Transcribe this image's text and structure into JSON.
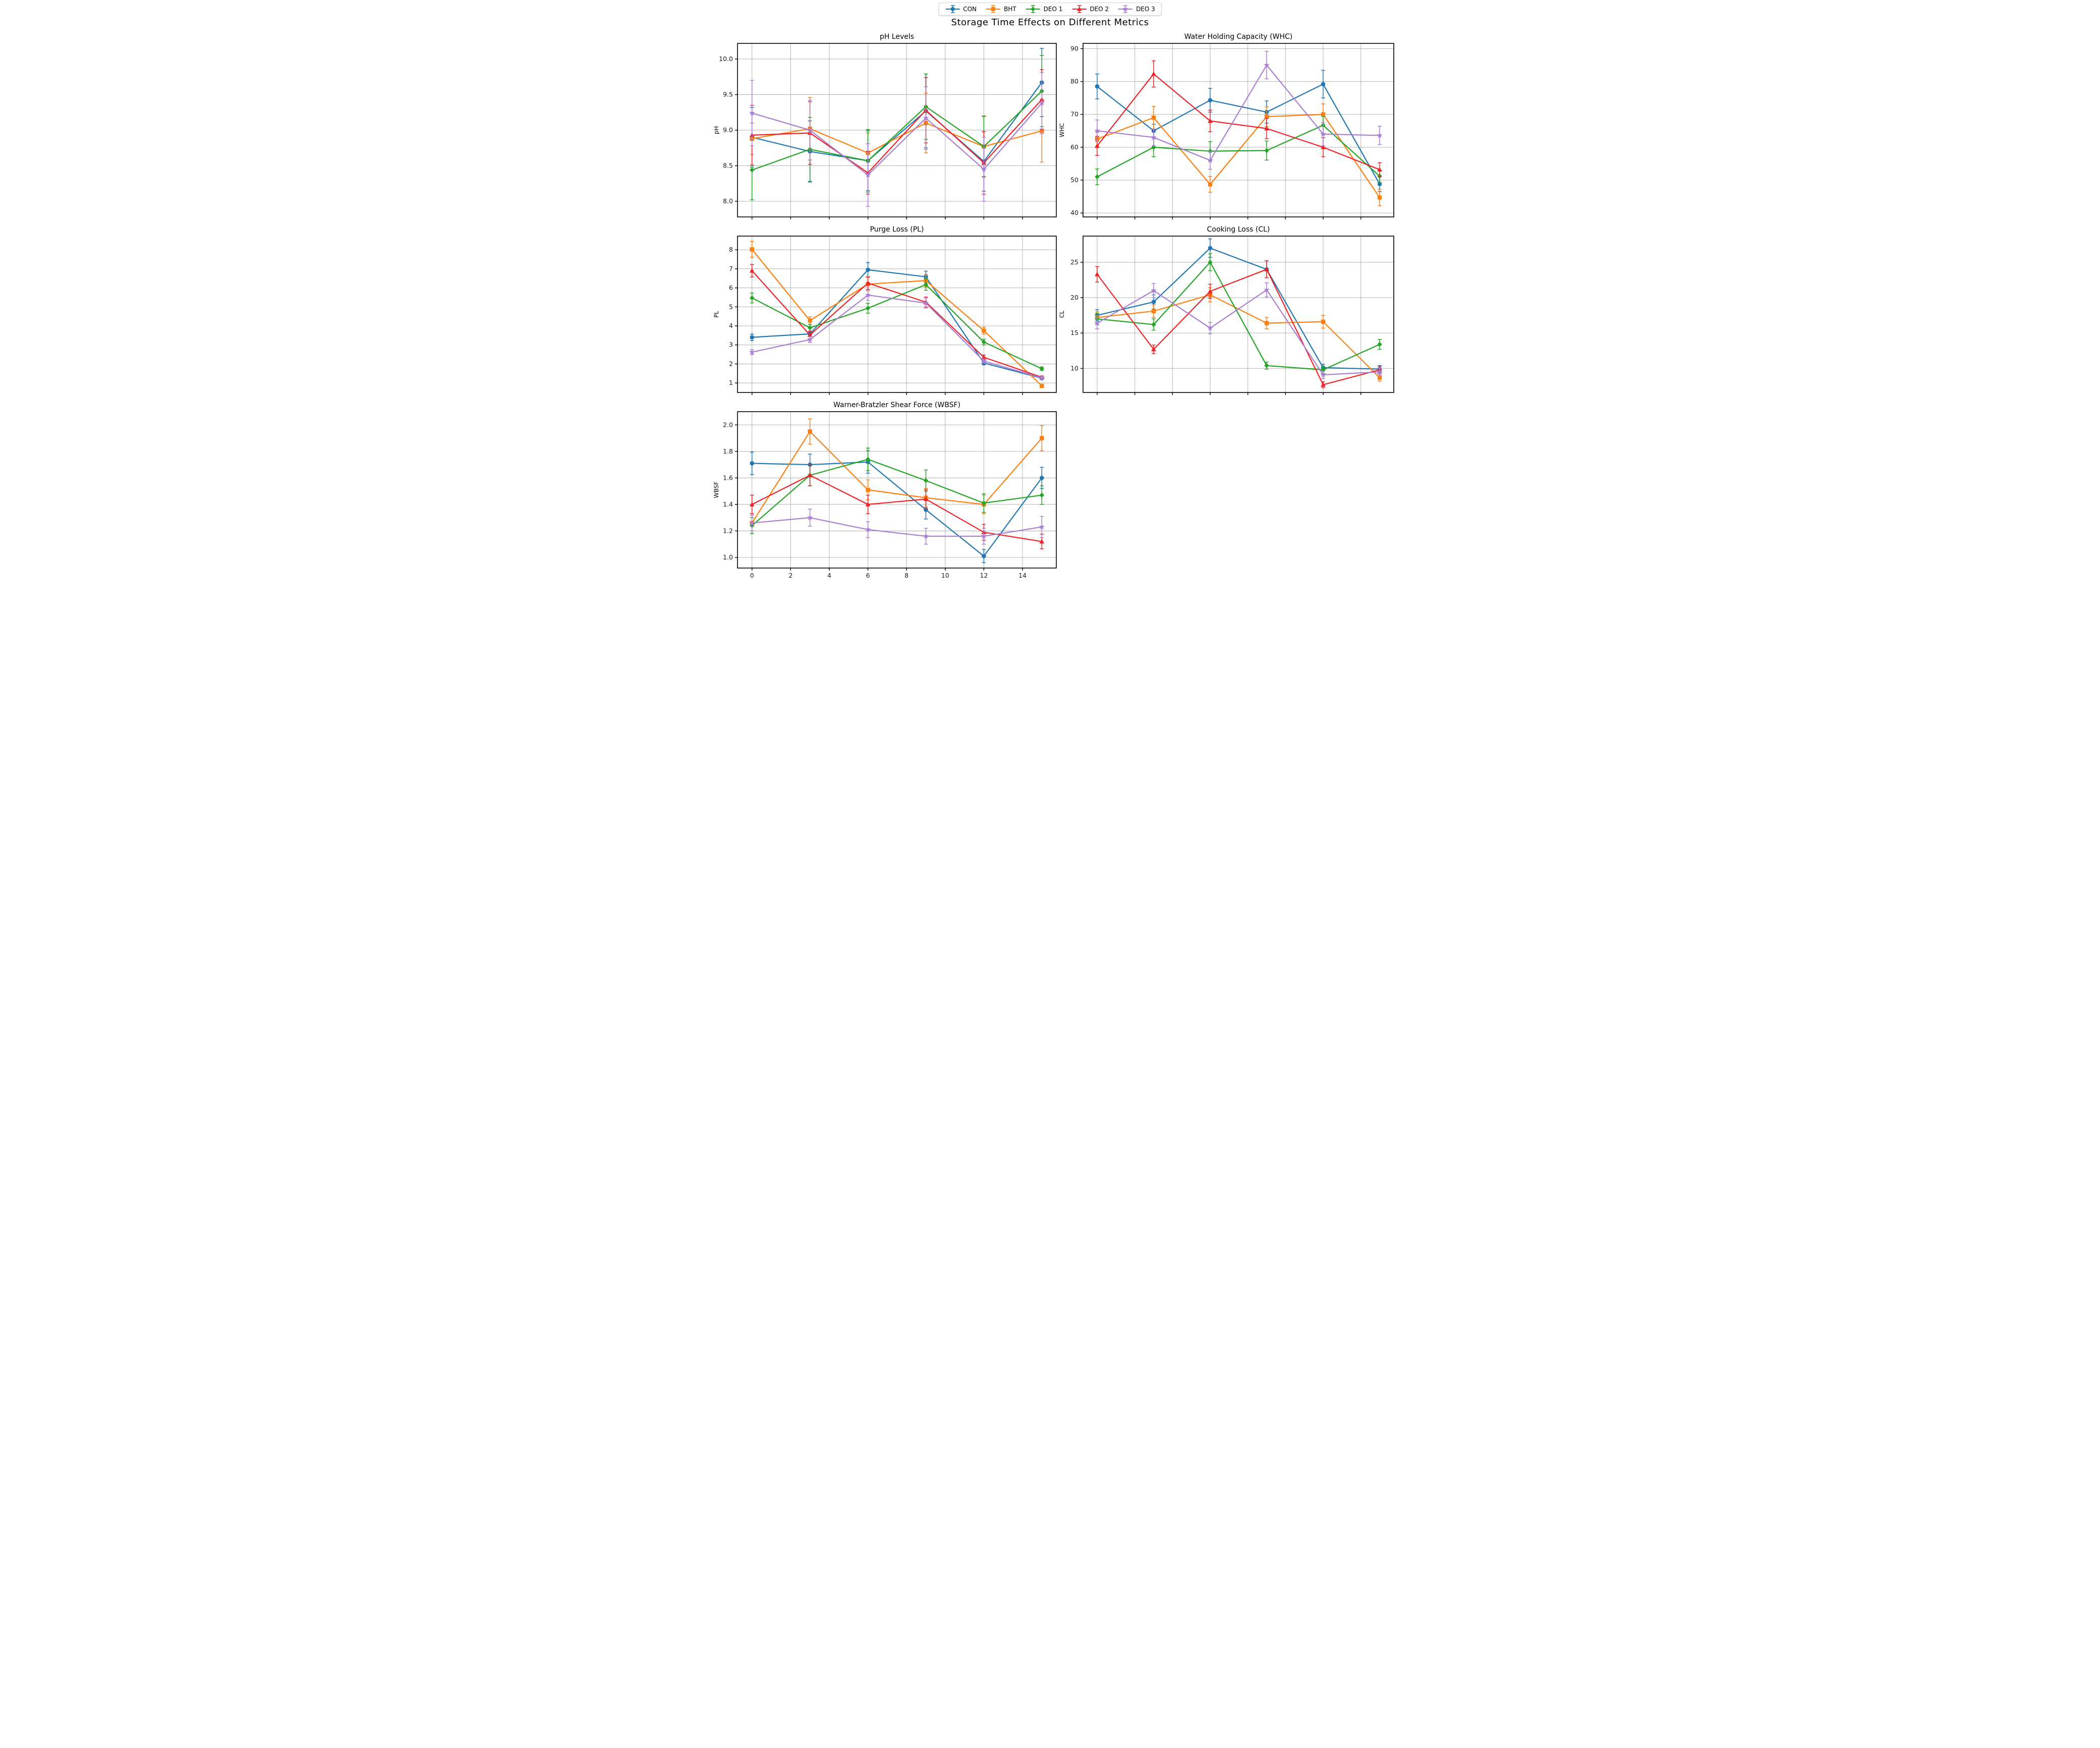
{
  "page_title": "Storage Time Effects on Different Metrics",
  "legend": {
    "items": [
      {
        "label": "CON",
        "color": "#1f77b4",
        "marker": "circle"
      },
      {
        "label": "BHT",
        "color": "#ff7f0e",
        "marker": "square"
      },
      {
        "label": "DEO 1",
        "color": "#23a523",
        "marker": "diamond"
      },
      {
        "label": "DEO 2",
        "color": "#ec2427",
        "marker": "triangle"
      },
      {
        "label": "DEO 3",
        "color": "#a97ed4",
        "marker": "star"
      }
    ]
  },
  "chart_data": [
    {
      "type": "line",
      "title": "pH Levels",
      "ylabel": "pH",
      "x": [
        0,
        3,
        6,
        9,
        12,
        15
      ],
      "xlim": [
        -0.75,
        15.75
      ],
      "xticks": [
        0,
        2,
        4,
        6,
        8,
        10,
        12,
        14
      ],
      "xticklabels": [
        "0",
        "2",
        "4",
        "6",
        "8",
        "10",
        "12",
        "14"
      ],
      "show_xticklabels": false,
      "yticks": [
        8.0,
        8.5,
        9.0,
        9.5,
        10.0
      ],
      "yticklabels": [
        "8.0",
        "8.5",
        "9.0",
        "9.5",
        "10.0"
      ],
      "ylim": [
        7.78,
        10.22
      ],
      "grid": true,
      "legend_position": "figure-top",
      "series": [
        {
          "name": "CON",
          "color": "#1f77b4",
          "marker": "circle",
          "values": [
            8.9,
            8.7,
            8.57,
            9.27,
            8.56,
            9.67
          ],
          "errors": [
            0.42,
            0.43,
            0.42,
            0.52,
            0.42,
            0.48
          ]
        },
        {
          "name": "BHT",
          "color": "#ff7f0e",
          "marker": "square",
          "values": [
            8.88,
            9.02,
            8.68,
            9.1,
            8.77,
            8.99
          ],
          "errors": [
            0.22,
            0.44,
            0.28,
            0.42,
            0.42,
            0.44
          ]
        },
        {
          "name": "DEO 1",
          "color": "#23a523",
          "marker": "diamond",
          "values": [
            8.44,
            8.73,
            8.57,
            9.33,
            8.77,
            9.55
          ],
          "errors": [
            0.42,
            0.45,
            0.44,
            0.46,
            0.43,
            0.5
          ]
        },
        {
          "name": "DEO 2",
          "color": "#ec2427",
          "marker": "triangle",
          "values": [
            8.93,
            8.96,
            8.4,
            9.28,
            8.54,
            9.43
          ],
          "errors": [
            0.42,
            0.44,
            0.3,
            0.46,
            0.44,
            0.42
          ]
        },
        {
          "name": "DEO 3",
          "color": "#a97ed4",
          "marker": "star",
          "values": [
            9.24,
            9.0,
            8.37,
            9.17,
            8.45,
            9.38
          ],
          "errors": [
            0.46,
            0.42,
            0.44,
            0.44,
            0.45,
            0.43
          ]
        }
      ]
    },
    {
      "type": "line",
      "title": "Water Holding Capacity (WHC)",
      "ylabel": "WHC",
      "x": [
        0,
        3,
        6,
        9,
        12,
        15
      ],
      "xlim": [
        -0.75,
        15.75
      ],
      "xticks": [
        0,
        2,
        4,
        6,
        8,
        10,
        12,
        14
      ],
      "xticklabels": [
        "0",
        "2",
        "4",
        "6",
        "8",
        "10",
        "12",
        "14"
      ],
      "show_xticklabels": false,
      "yticks": [
        40,
        50,
        60,
        70,
        80,
        90
      ],
      "yticklabels": [
        "40",
        "50",
        "60",
        "70",
        "80",
        "90"
      ],
      "ylim": [
        38.8,
        91.6
      ],
      "grid": true,
      "series": [
        {
          "name": "CON",
          "color": "#1f77b4",
          "marker": "circle",
          "values": [
            78.5,
            65.0,
            74.3,
            70.7,
            79.2,
            48.8
          ],
          "errors": [
            3.8,
            2.0,
            3.6,
            3.4,
            4.2,
            2.3
          ]
        },
        {
          "name": "BHT",
          "color": "#ff7f0e",
          "marker": "square",
          "values": [
            62.5,
            69.0,
            48.7,
            69.3,
            70.0,
            44.7
          ],
          "errors": [
            2.1,
            3.4,
            2.4,
            3.0,
            3.2,
            2.5
          ]
        },
        {
          "name": "DEO 1",
          "color": "#23a523",
          "marker": "diamond",
          "values": [
            51.0,
            60.0,
            58.8,
            59.0,
            66.7,
            51.2
          ],
          "errors": [
            2.4,
            2.9,
            2.9,
            2.9,
            2.7,
            1.9
          ]
        },
        {
          "name": "DEO 2",
          "color": "#ec2427",
          "marker": "triangle",
          "values": [
            60.4,
            82.3,
            68.0,
            65.7,
            60.0,
            53.2
          ],
          "errors": [
            2.9,
            4.0,
            3.3,
            3.1,
            2.9,
            2.1
          ]
        },
        {
          "name": "DEO 3",
          "color": "#a97ed4",
          "marker": "star",
          "values": [
            65.0,
            63.0,
            56.0,
            85.0,
            64.0,
            63.6
          ],
          "errors": [
            3.3,
            2.5,
            2.7,
            4.2,
            3.5,
            2.8
          ]
        }
      ]
    },
    {
      "type": "line",
      "title": "Purge Loss (PL)",
      "ylabel": "PL",
      "x": [
        0,
        3,
        6,
        9,
        12,
        15
      ],
      "xlim": [
        -0.75,
        15.75
      ],
      "xticks": [
        0,
        2,
        4,
        6,
        8,
        10,
        12,
        14
      ],
      "xticklabels": [
        "0",
        "2",
        "4",
        "6",
        "8",
        "10",
        "12",
        "14"
      ],
      "show_xticklabels": false,
      "yticks": [
        1,
        2,
        3,
        4,
        5,
        6,
        7,
        8
      ],
      "yticklabels": [
        "1",
        "2",
        "3",
        "4",
        "5",
        "6",
        "7",
        "8"
      ],
      "ylim": [
        0.5,
        8.72
      ],
      "grid": true,
      "series": [
        {
          "name": "CON",
          "color": "#1f77b4",
          "marker": "circle",
          "values": [
            3.4,
            3.58,
            6.95,
            6.58,
            2.05,
            1.25
          ],
          "errors": [
            0.17,
            0.12,
            0.38,
            0.3,
            0.1,
            0.07
          ]
        },
        {
          "name": "BHT",
          "color": "#ff7f0e",
          "marker": "square",
          "values": [
            8.02,
            4.28,
            6.2,
            6.38,
            3.75,
            0.85
          ],
          "errors": [
            0.42,
            0.2,
            0.35,
            0.33,
            0.18,
            0.05
          ]
        },
        {
          "name": "DEO 1",
          "color": "#23a523",
          "marker": "diamond",
          "values": [
            5.47,
            3.9,
            4.93,
            6.17,
            3.15,
            1.75
          ],
          "errors": [
            0.26,
            0.18,
            0.26,
            0.3,
            0.15,
            0.09
          ]
        },
        {
          "name": "DEO 2",
          "color": "#ec2427",
          "marker": "triangle",
          "values": [
            6.9,
            3.52,
            6.25,
            5.25,
            2.35,
            1.3
          ],
          "errors": [
            0.33,
            0.2,
            0.33,
            0.27,
            0.12,
            0.07
          ]
        },
        {
          "name": "DEO 3",
          "color": "#a97ed4",
          "marker": "star",
          "values": [
            2.62,
            3.28,
            5.62,
            5.2,
            2.15,
            1.27
          ],
          "errors": [
            0.13,
            0.15,
            0.28,
            0.26,
            0.11,
            0.07
          ]
        }
      ]
    },
    {
      "type": "line",
      "title": "Cooking Loss (CL)",
      "ylabel": "CL",
      "x": [
        0,
        3,
        6,
        9,
        12,
        15
      ],
      "xlim": [
        -0.75,
        15.75
      ],
      "xticks": [
        0,
        2,
        4,
        6,
        8,
        10,
        12,
        14
      ],
      "xticklabels": [
        "0",
        "2",
        "4",
        "6",
        "8",
        "10",
        "12",
        "14"
      ],
      "show_xticklabels": false,
      "yticks": [
        10,
        15,
        20,
        25
      ],
      "yticklabels": [
        "10",
        "15",
        "20",
        "25"
      ],
      "ylim": [
        6.6,
        28.7
      ],
      "grid": true,
      "series": [
        {
          "name": "CON",
          "color": "#1f77b4",
          "marker": "circle",
          "values": [
            17.5,
            19.4,
            27.0,
            24.0,
            10.1,
            9.9
          ],
          "errors": [
            0.8,
            1.0,
            1.3,
            1.2,
            0.5,
            0.5
          ]
        },
        {
          "name": "BHT",
          "color": "#ff7f0e",
          "marker": "square",
          "values": [
            17.2,
            18.1,
            20.4,
            16.4,
            16.6,
            8.7
          ],
          "errors": [
            0.8,
            0.9,
            1.0,
            0.8,
            0.9,
            0.5
          ]
        },
        {
          "name": "DEO 1",
          "color": "#23a523",
          "marker": "diamond",
          "values": [
            17.0,
            16.2,
            25.0,
            10.4,
            9.8,
            13.4
          ],
          "errors": [
            0.8,
            0.8,
            1.2,
            0.5,
            0.5,
            0.7
          ]
        },
        {
          "name": "DEO 2",
          "color": "#ec2427",
          "marker": "triangle",
          "values": [
            23.3,
            12.7,
            20.9,
            24.0,
            7.7,
            9.8
          ],
          "errors": [
            1.1,
            0.6,
            1.0,
            1.2,
            0.4,
            0.5
          ]
        },
        {
          "name": "DEO 3",
          "color": "#a97ed4",
          "marker": "star",
          "values": [
            16.4,
            21.0,
            15.7,
            21.1,
            9.1,
            9.5
          ],
          "errors": [
            0.8,
            1.0,
            0.8,
            1.0,
            0.5,
            0.5
          ]
        }
      ]
    },
    {
      "type": "line",
      "title": "Warner-Bratzler Shear Force (WBSF)",
      "ylabel": "WBSF",
      "x": [
        0,
        3,
        6,
        9,
        12,
        15
      ],
      "xlim": [
        -0.75,
        15.75
      ],
      "xticks": [
        0,
        2,
        4,
        6,
        8,
        10,
        12,
        14
      ],
      "xticklabels": [
        "0",
        "2",
        "4",
        "6",
        "8",
        "10",
        "12",
        "14"
      ],
      "show_xticklabels": true,
      "yticks": [
        1.0,
        1.2,
        1.4,
        1.6,
        1.8,
        2.0
      ],
      "yticklabels": [
        "1.0",
        "1.2",
        "1.4",
        "1.6",
        "1.8",
        "2.0"
      ],
      "ylim": [
        0.92,
        2.1
      ],
      "grid": true,
      "series": [
        {
          "name": "CON",
          "color": "#1f77b4",
          "marker": "circle",
          "values": [
            1.71,
            1.7,
            1.72,
            1.36,
            1.01,
            1.6
          ],
          "errors": [
            0.085,
            0.08,
            0.085,
            0.07,
            0.05,
            0.08
          ]
        },
        {
          "name": "BHT",
          "color": "#ff7f0e",
          "marker": "square",
          "values": [
            1.26,
            1.95,
            1.51,
            1.45,
            1.4,
            1.9
          ],
          "errors": [
            0.06,
            0.095,
            0.075,
            0.07,
            0.07,
            0.095
          ]
        },
        {
          "name": "DEO 1",
          "color": "#23a523",
          "marker": "diamond",
          "values": [
            1.24,
            1.62,
            1.74,
            1.58,
            1.41,
            1.47
          ],
          "errors": [
            0.06,
            0.08,
            0.085,
            0.08,
            0.07,
            0.07
          ]
        },
        {
          "name": "DEO 2",
          "color": "#ec2427",
          "marker": "triangle",
          "values": [
            1.4,
            1.62,
            1.4,
            1.44,
            1.19,
            1.12
          ],
          "errors": [
            0.07,
            0.08,
            0.07,
            0.07,
            0.06,
            0.055
          ]
        },
        {
          "name": "DEO 3",
          "color": "#a97ed4",
          "marker": "star",
          "values": [
            1.26,
            1.3,
            1.21,
            1.16,
            1.16,
            1.23
          ],
          "errors": [
            0.06,
            0.065,
            0.06,
            0.06,
            0.06,
            0.08
          ]
        }
      ]
    }
  ]
}
